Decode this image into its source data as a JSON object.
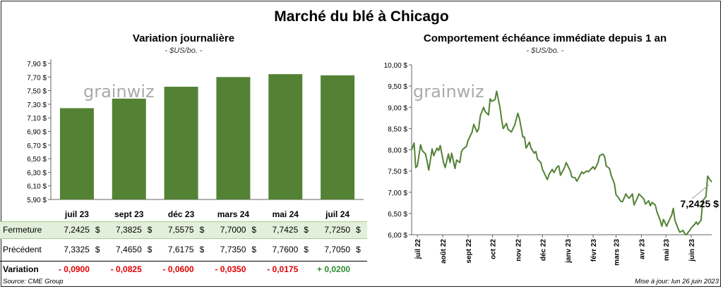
{
  "title": "Marché du blé à Chicago",
  "left_panel": {
    "title": "Variation  journalière",
    "subtitle": "- $US/bo. -",
    "watermark": "grainwiz",
    "table": {
      "rows": [
        {
          "label": "Fermeture",
          "values": [
            "7,2425",
            "7,3825",
            "7,5575",
            "7,7000",
            "7,7425",
            "7,7250"
          ]
        },
        {
          "label": "Précédent",
          "values": [
            "7,3325",
            "7,4650",
            "7,6175",
            "7,7350",
            "7,7600",
            "7,7050"
          ]
        }
      ],
      "variation_label": "Variation",
      "variations": [
        "- 0,0900",
        "- 0,0825",
        "- 0,0600",
        "- 0,0350",
        "- 0,0175",
        "+ 0,0200"
      ],
      "currency": "$"
    }
  },
  "right_panel": {
    "title": "Comportement  échéance immédiate depuis 1 an",
    "subtitle": "- $US/bo. -",
    "watermark": "grainwiz",
    "last_value_label": "7,2425 $"
  },
  "footer": {
    "source": "Source: CME Group",
    "updated": "Mise à jour: lun 26 juin 2023"
  },
  "colors": {
    "bar": "#548235",
    "line": "#548235",
    "table_highlight": "#e2efda",
    "negative": "#e00000",
    "positive": "#2e8b2e"
  },
  "chart_data": [
    {
      "type": "bar",
      "categories": [
        "juil 23",
        "sept 23",
        "déc 23",
        "mars 24",
        "mai 24",
        "juil 24"
      ],
      "values": [
        7.2425,
        7.3825,
        7.5575,
        7.7,
        7.7425,
        7.725
      ],
      "ylim": [
        5.9,
        7.9
      ],
      "yticks": [
        "5,90 $",
        "6,10 $",
        "6,30 $",
        "6,50 $",
        "6,70 $",
        "6,90 $",
        "7,10 $",
        "7,30 $",
        "7,50 $",
        "7,70 $",
        "7,90 $"
      ],
      "ytick_values": [
        5.9,
        6.1,
        6.3,
        6.5,
        6.7,
        6.9,
        7.1,
        7.3,
        7.5,
        7.7,
        7.9
      ]
    },
    {
      "type": "line",
      "ylim": [
        6.0,
        10.0
      ],
      "yticks": [
        "6,00 $",
        "6,50 $",
        "7,00 $",
        "7,50 $",
        "8,00 $",
        "8,50 $",
        "9,00 $",
        "9,50 $",
        "10,00 $"
      ],
      "ytick_values": [
        6,
        6.5,
        7,
        7.5,
        8,
        8.5,
        9,
        9.5,
        10
      ],
      "xticks": [
        "juil 22",
        "août 22",
        "sept 22",
        "oct 22",
        "nov 22",
        "déc 22",
        "janv 23",
        "févr 23",
        "mars 23",
        "avr 23",
        "mai 23",
        "juin 23"
      ],
      "xtick_dates": [
        "2022-07-01",
        "2022-08-01",
        "2022-09-01",
        "2022-10-01",
        "2022-11-01",
        "2022-12-01",
        "2023-01-01",
        "2023-02-01",
        "2023-03-01",
        "2023-04-01",
        "2023-05-01",
        "2023-06-01"
      ],
      "x_range": [
        "2022-06-24",
        "2023-06-26"
      ],
      "series": [
        {
          "points": [
            [
              "2022-06-24",
              8.0
            ],
            [
              "2022-06-27",
              8.16
            ],
            [
              "2022-06-29",
              7.58
            ],
            [
              "2022-07-01",
              7.62
            ],
            [
              "2022-07-05",
              8.12
            ],
            [
              "2022-07-07",
              7.98
            ],
            [
              "2022-07-11",
              7.9
            ],
            [
              "2022-07-13",
              7.72
            ],
            [
              "2022-07-15",
              7.52
            ],
            [
              "2022-07-19",
              8.02
            ],
            [
              "2022-07-21",
              7.86
            ],
            [
              "2022-07-25",
              8.04
            ],
            [
              "2022-07-27",
              7.98
            ],
            [
              "2022-07-29",
              8.1
            ],
            [
              "2022-08-02",
              7.7
            ],
            [
              "2022-08-04",
              7.58
            ],
            [
              "2022-08-08",
              7.9
            ],
            [
              "2022-08-10",
              7.7
            ],
            [
              "2022-08-12",
              7.92
            ],
            [
              "2022-08-16",
              7.56
            ],
            [
              "2022-08-18",
              7.76
            ],
            [
              "2022-08-22",
              7.7
            ],
            [
              "2022-08-24",
              7.96
            ],
            [
              "2022-08-26",
              8.02
            ],
            [
              "2022-08-30",
              8.08
            ],
            [
              "2022-09-01",
              8.22
            ],
            [
              "2022-09-06",
              8.42
            ],
            [
              "2022-09-08",
              8.6
            ],
            [
              "2022-09-12",
              8.42
            ],
            [
              "2022-09-14",
              8.5
            ],
            [
              "2022-09-16",
              8.8
            ],
            [
              "2022-09-20",
              9.0
            ],
            [
              "2022-09-22",
              8.9
            ],
            [
              "2022-09-26",
              8.82
            ],
            [
              "2022-09-28",
              9.2
            ],
            [
              "2022-09-30",
              9.14
            ],
            [
              "2022-10-04",
              9.18
            ],
            [
              "2022-10-06",
              9.38
            ],
            [
              "2022-10-10",
              9.0
            ],
            [
              "2022-10-12",
              8.72
            ],
            [
              "2022-10-14",
              8.5
            ],
            [
              "2022-10-18",
              8.62
            ],
            [
              "2022-10-20",
              8.48
            ],
            [
              "2022-10-24",
              8.42
            ],
            [
              "2022-10-26",
              8.5
            ],
            [
              "2022-10-28",
              8.58
            ],
            [
              "2022-11-01",
              8.86
            ],
            [
              "2022-11-03",
              8.72
            ],
            [
              "2022-11-07",
              8.3
            ],
            [
              "2022-11-09",
              8.3
            ],
            [
              "2022-11-11",
              8.04
            ],
            [
              "2022-11-15",
              8.18
            ],
            [
              "2022-11-17",
              8.04
            ],
            [
              "2022-11-21",
              7.92
            ],
            [
              "2022-11-23",
              7.96
            ],
            [
              "2022-11-25",
              7.78
            ],
            [
              "2022-11-29",
              7.7
            ],
            [
              "2022-12-01",
              7.54
            ],
            [
              "2022-12-05",
              7.38
            ],
            [
              "2022-12-07",
              7.3
            ],
            [
              "2022-12-09",
              7.42
            ],
            [
              "2022-12-13",
              7.54
            ],
            [
              "2022-12-15",
              7.46
            ],
            [
              "2022-12-19",
              7.6
            ],
            [
              "2022-12-21",
              7.62
            ],
            [
              "2022-12-23",
              7.4
            ],
            [
              "2022-12-28",
              7.58
            ],
            [
              "2022-12-30",
              7.7
            ],
            [
              "2023-01-04",
              7.5
            ],
            [
              "2023-01-06",
              7.36
            ],
            [
              "2023-01-10",
              7.34
            ],
            [
              "2023-01-12",
              7.26
            ],
            [
              "2023-01-16",
              7.4
            ],
            [
              "2023-01-18",
              7.48
            ],
            [
              "2023-01-20",
              7.44
            ],
            [
              "2023-01-24",
              7.5
            ],
            [
              "2023-01-26",
              7.48
            ],
            [
              "2023-01-30",
              7.56
            ],
            [
              "2023-02-01",
              7.6
            ],
            [
              "2023-02-03",
              7.54
            ],
            [
              "2023-02-07",
              7.7
            ],
            [
              "2023-02-09",
              7.86
            ],
            [
              "2023-02-13",
              7.9
            ],
            [
              "2023-02-15",
              7.84
            ],
            [
              "2023-02-17",
              7.62
            ],
            [
              "2023-02-21",
              7.56
            ],
            [
              "2023-02-23",
              7.4
            ],
            [
              "2023-02-27",
              7.2
            ],
            [
              "2023-03-01",
              6.94
            ],
            [
              "2023-03-03",
              6.9
            ],
            [
              "2023-03-07",
              6.78
            ],
            [
              "2023-03-09",
              6.78
            ],
            [
              "2023-03-13",
              6.96
            ],
            [
              "2023-03-15",
              6.9
            ],
            [
              "2023-03-17",
              6.86
            ],
            [
              "2023-03-21",
              6.96
            ],
            [
              "2023-03-23",
              6.7
            ],
            [
              "2023-03-27",
              6.86
            ],
            [
              "2023-03-29",
              6.96
            ],
            [
              "2023-03-31",
              6.92
            ],
            [
              "2023-04-04",
              6.84
            ],
            [
              "2023-04-06",
              6.72
            ],
            [
              "2023-04-10",
              6.8
            ],
            [
              "2023-04-12",
              6.68
            ],
            [
              "2023-04-14",
              6.76
            ],
            [
              "2023-04-18",
              6.7
            ],
            [
              "2023-04-20",
              6.54
            ],
            [
              "2023-04-24",
              6.34
            ],
            [
              "2023-04-26",
              6.2
            ],
            [
              "2023-04-28",
              6.36
            ],
            [
              "2023-05-02",
              6.2
            ],
            [
              "2023-05-04",
              6.3
            ],
            [
              "2023-05-08",
              6.46
            ],
            [
              "2023-05-10",
              6.62
            ],
            [
              "2023-05-12",
              6.34
            ],
            [
              "2023-05-16",
              6.14
            ],
            [
              "2023-05-18",
              6.06
            ],
            [
              "2023-05-22",
              6.1
            ],
            [
              "2023-05-24",
              6.02
            ],
            [
              "2023-05-26",
              6.0
            ],
            [
              "2023-05-30",
              6.1
            ],
            [
              "2023-06-01",
              6.16
            ],
            [
              "2023-06-05",
              6.24
            ],
            [
              "2023-06-07",
              6.3
            ],
            [
              "2023-06-09",
              6.24
            ],
            [
              "2023-06-13",
              6.34
            ],
            [
              "2023-06-15",
              6.8
            ],
            [
              "2023-06-19",
              6.9
            ],
            [
              "2023-06-21",
              7.38
            ],
            [
              "2023-06-23",
              7.32
            ],
            [
              "2023-06-26",
              7.24
            ]
          ]
        }
      ]
    }
  ]
}
